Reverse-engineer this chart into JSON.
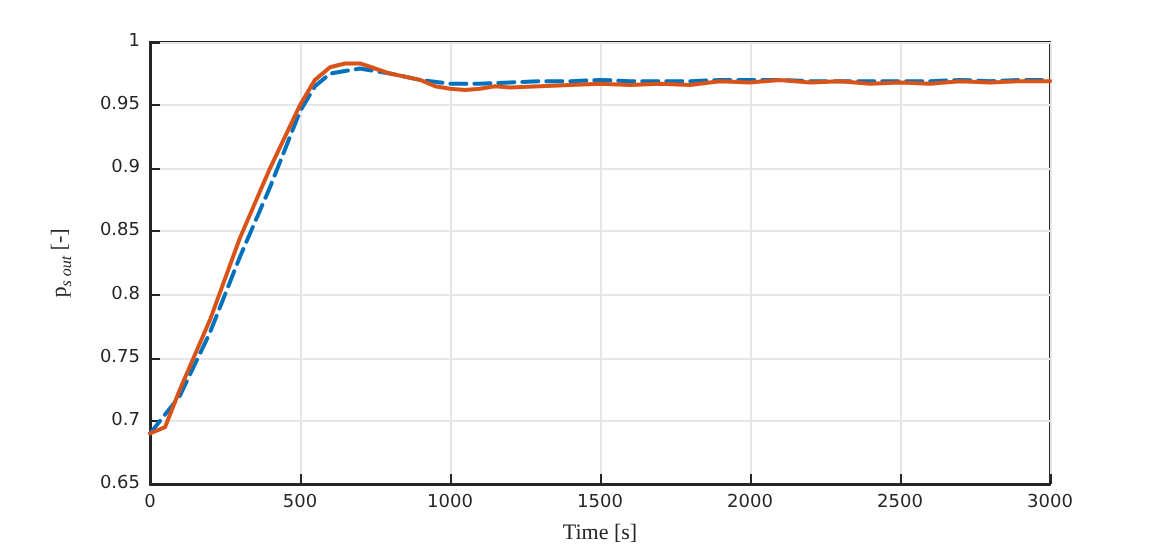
{
  "chart_data": {
    "type": "line",
    "xlabel": "Time [s]",
    "ylabel": "p$_{s out}$ [-]",
    "xlim": [
      0,
      3000
    ],
    "xticks": [
      0,
      500,
      1000,
      1500,
      2000,
      2500,
      3000
    ],
    "ylim": [
      0.65,
      1
    ],
    "yticks": [
      0.65,
      0.7,
      0.75,
      0.8,
      0.85,
      0.9,
      0.95,
      1
    ],
    "grid": true,
    "series": [
      {
        "color": "#0072bd",
        "line_style": "dashed",
        "x": [
          0,
          100,
          200,
          300,
          400,
          500,
          550,
          600,
          700,
          800,
          900,
          1000,
          1100,
          1200,
          1300,
          1400,
          1500,
          1600,
          1700,
          1800,
          1900,
          2000,
          2100,
          2200,
          2300,
          2400,
          2500,
          2600,
          2700,
          2800,
          2900,
          3000
        ],
        "values": [
          0.69,
          0.72,
          0.77,
          0.83,
          0.885,
          0.945,
          0.965,
          0.975,
          0.979,
          0.975,
          0.97,
          0.967,
          0.967,
          0.968,
          0.969,
          0.969,
          0.97,
          0.969,
          0.969,
          0.969,
          0.97,
          0.97,
          0.97,
          0.969,
          0.969,
          0.969,
          0.969,
          0.969,
          0.97,
          0.969,
          0.97,
          0.97
        ]
      },
      {
        "color": "#d95319",
        "line_style": "solid",
        "x": [
          0,
          50,
          100,
          200,
          300,
          400,
          500,
          550,
          600,
          650,
          700,
          750,
          800,
          900,
          950,
          1000,
          1050,
          1100,
          1150,
          1200,
          1300,
          1400,
          1500,
          1600,
          1700,
          1800,
          1900,
          2000,
          2100,
          2200,
          2300,
          2400,
          2500,
          2600,
          2700,
          2800,
          2900,
          3000
        ],
        "values": [
          0.69,
          0.695,
          0.725,
          0.78,
          0.845,
          0.9,
          0.95,
          0.97,
          0.98,
          0.983,
          0.983,
          0.979,
          0.975,
          0.97,
          0.965,
          0.963,
          0.962,
          0.963,
          0.965,
          0.964,
          0.965,
          0.966,
          0.967,
          0.966,
          0.967,
          0.966,
          0.969,
          0.968,
          0.97,
          0.968,
          0.969,
          0.967,
          0.968,
          0.967,
          0.969,
          0.968,
          0.969,
          0.969
        ]
      }
    ]
  }
}
